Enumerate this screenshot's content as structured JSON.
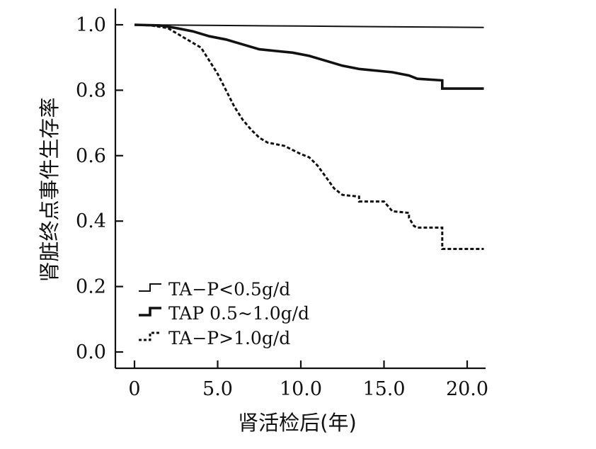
{
  "chart_data": {
    "type": "line",
    "xlabel": "肾活检后(年)",
    "ylabel": "肾脏终点事件生存率",
    "xlim": [
      0,
      21
    ],
    "ylim": [
      0,
      1.0
    ],
    "x_ticks": [
      "0",
      "5.0",
      "10.0",
      "15.0",
      "20.0"
    ],
    "x_tick_values": [
      0,
      5,
      10,
      15,
      20
    ],
    "y_ticks": [
      "0.0",
      "0.2",
      "0.4",
      "0.6",
      "0.8",
      "1.0"
    ],
    "y_tick_values": [
      0,
      0.2,
      0.4,
      0.6,
      0.8,
      1.0
    ],
    "grid": false,
    "legend_position": "bottom-left",
    "series": [
      {
        "name": "TA−P<0.5g/d",
        "style": "thin-solid",
        "points": [
          [
            0,
            1.0
          ],
          [
            5,
            0.998
          ],
          [
            10,
            0.996
          ],
          [
            15,
            0.994
          ],
          [
            21,
            0.992
          ]
        ]
      },
      {
        "name": "TAP 0.5~1.0g/d",
        "style": "thick-solid",
        "points": [
          [
            0,
            1.0
          ],
          [
            1.5,
            0.998
          ],
          [
            2.5,
            0.99
          ],
          [
            3.5,
            0.98
          ],
          [
            4.5,
            0.965
          ],
          [
            5.5,
            0.955
          ],
          [
            6.5,
            0.94
          ],
          [
            7.5,
            0.925
          ],
          [
            8.5,
            0.92
          ],
          [
            9.5,
            0.915
          ],
          [
            10.5,
            0.905
          ],
          [
            11.5,
            0.89
          ],
          [
            12.5,
            0.875
          ],
          [
            13.5,
            0.865
          ],
          [
            15.5,
            0.855
          ],
          [
            16.5,
            0.845
          ],
          [
            17.0,
            0.835
          ],
          [
            18.5,
            0.83
          ],
          [
            18.5,
            0.805
          ],
          [
            21,
            0.805
          ]
        ]
      },
      {
        "name": "TA−P>1.0g/d",
        "style": "dashed",
        "points": [
          [
            0,
            1.0
          ],
          [
            1.0,
            0.998
          ],
          [
            2.0,
            0.99
          ],
          [
            3.0,
            0.96
          ],
          [
            4.0,
            0.93
          ],
          [
            4.5,
            0.89
          ],
          [
            5.0,
            0.85
          ],
          [
            5.5,
            0.8
          ],
          [
            6.0,
            0.75
          ],
          [
            6.5,
            0.71
          ],
          [
            7.0,
            0.68
          ],
          [
            7.5,
            0.655
          ],
          [
            8.0,
            0.64
          ],
          [
            9.0,
            0.63
          ],
          [
            10.0,
            0.605
          ],
          [
            10.5,
            0.595
          ],
          [
            11.0,
            0.57
          ],
          [
            11.5,
            0.535
          ],
          [
            12.0,
            0.5
          ],
          [
            12.5,
            0.48
          ],
          [
            13.5,
            0.475
          ],
          [
            13.5,
            0.46
          ],
          [
            15.0,
            0.46
          ],
          [
            15.5,
            0.43
          ],
          [
            16.5,
            0.425
          ],
          [
            16.5,
            0.41
          ],
          [
            16.8,
            0.385
          ],
          [
            17.0,
            0.38
          ],
          [
            18.5,
            0.38
          ],
          [
            18.5,
            0.315
          ],
          [
            21,
            0.315
          ]
        ]
      }
    ]
  }
}
